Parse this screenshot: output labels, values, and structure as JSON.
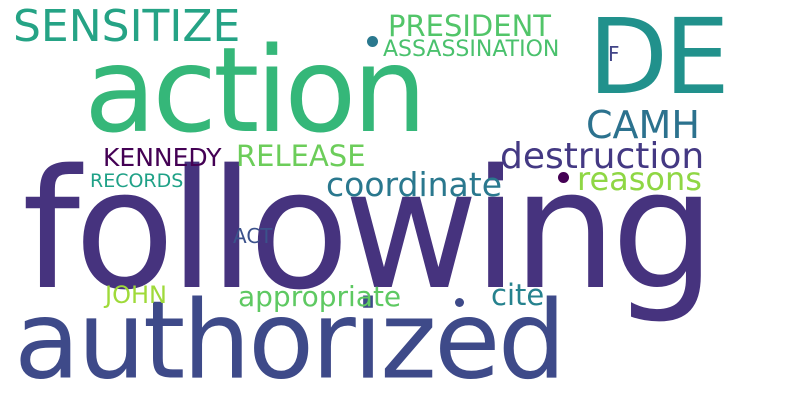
{
  "words": [
    {
      "text": "following",
      "color": "#46337e"
    },
    {
      "text": "authorized",
      "color": "#3e4a89"
    },
    {
      "text": "action",
      "color": "#35b779"
    },
    {
      "text": "DE",
      "color": "#21918c"
    },
    {
      "text": "SENSITIZE",
      "color": "#25a385"
    },
    {
      "text": "PRESIDENT",
      "color": "#52c569"
    },
    {
      "text": "ASSASSINATION",
      "color": "#4ac16d"
    },
    {
      "text": "F",
      "color": "#414487"
    },
    {
      "text": "CAMH",
      "color": "#2c728e"
    },
    {
      "text": "KENNEDY",
      "color": "#440154"
    },
    {
      "text": "RELEASE",
      "color": "#6ccd5a"
    },
    {
      "text": "destruction",
      "color": "#443983"
    },
    {
      "text": "reasons",
      "color": "#8fd744"
    },
    {
      "text": "coordinate",
      "color": "#2a788e"
    },
    {
      "text": "RECORDS",
      "color": "#1fa187"
    },
    {
      "text": "ACT",
      "color": "#3b528b"
    },
    {
      "text": "JOHN",
      "color": "#9fda3a"
    },
    {
      "text": "appropriate",
      "color": "#5ec962"
    },
    {
      "text": "cite",
      "color": "#26828e"
    }
  ],
  "dots": [
    {
      "color": "#2a788e"
    },
    {
      "color": "#440154"
    },
    {
      "color": "#3e4a89"
    }
  ]
}
